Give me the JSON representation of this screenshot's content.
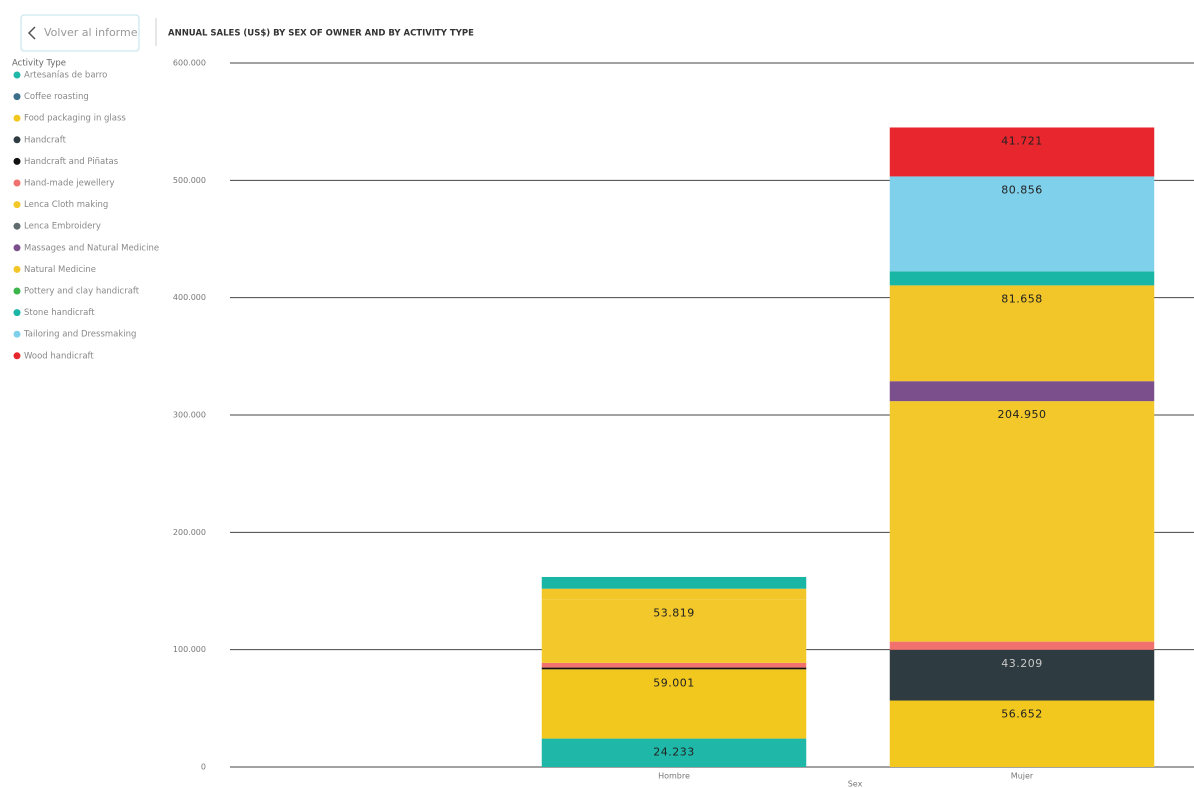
{
  "back_button": "Volver al informe",
  "chart_data": {
    "type": "bar",
    "stacked": true,
    "title": "ANNUAL SALES (US$) BY SEX OF OWNER AND BY ACTIVITY TYPE",
    "legend_title": "Activity Type",
    "x_label": "Sex",
    "categories": [
      "Hombre",
      "Mujer"
    ],
    "series": [
      {
        "name": "Artesanías de barro",
        "color": "#1fb8a8",
        "values": [
          24233,
          null
        ],
        "value_labels": [
          "24.233",
          null
        ]
      },
      {
        "name": "Coffee roasting",
        "color": "#3e6f8a",
        "values": [
          null,
          null
        ]
      },
      {
        "name": "Food packaging in glass",
        "color": "#f2c81f",
        "values": [
          59001,
          56652
        ],
        "value_labels": [
          "59.001",
          "56.652"
        ]
      },
      {
        "name": "Handcraft",
        "color": "#2e3b40",
        "values": [
          null,
          43209
        ],
        "value_labels": [
          null,
          "43.209"
        ]
      },
      {
        "name": "Handcraft and Piñatas",
        "color": "#111111",
        "values": [
          1500,
          null
        ]
      },
      {
        "name": "Hand-made jewellery",
        "color": "#f0716d",
        "values": [
          4000,
          7000
        ]
      },
      {
        "name": "Lenca Cloth making",
        "color": "#f2c82a",
        "values": [
          53819,
          204950
        ],
        "value_labels": [
          "53.819",
          "204.950"
        ]
      },
      {
        "name": "Lenca Embroidery",
        "color": "#5f6b6d",
        "values": [
          null,
          null
        ]
      },
      {
        "name": "Massages and Natural Medicine",
        "color": "#7b4f8c",
        "values": [
          null,
          17000
        ]
      },
      {
        "name": "Natural Medicine",
        "color": "#f2c628",
        "values": [
          9400,
          81658
        ],
        "value_labels": [
          null,
          "81.658"
        ]
      },
      {
        "name": "Pottery and clay handicraft",
        "color": "#3ab54a",
        "values": [
          null,
          null
        ]
      },
      {
        "name": "Stone handicraft",
        "color": "#19b5a5",
        "values": [
          10000,
          12000
        ]
      },
      {
        "name": "Tailoring and Dressmaking",
        "color": "#7fd0ea",
        "values": [
          null,
          80856
        ],
        "value_labels": [
          null,
          "80.856"
        ]
      },
      {
        "name": "Wood handicraft",
        "color": "#e8262d",
        "values": [
          null,
          41721
        ],
        "value_labels": [
          null,
          "41.721"
        ]
      }
    ],
    "ylim": [
      0,
      600000
    ],
    "yticks": [
      0,
      {
        "value": 100000,
        "label": "100.000"
      },
      {
        "value": 200000,
        "label": "200.000"
      },
      {
        "value": 300000,
        "label": "300.000"
      },
      {
        "value": 400000,
        "label": "400.000"
      },
      {
        "value": 500000,
        "label": "500.000"
      },
      {
        "value": 600000,
        "label": "600.000"
      }
    ],
    "grid": true
  }
}
